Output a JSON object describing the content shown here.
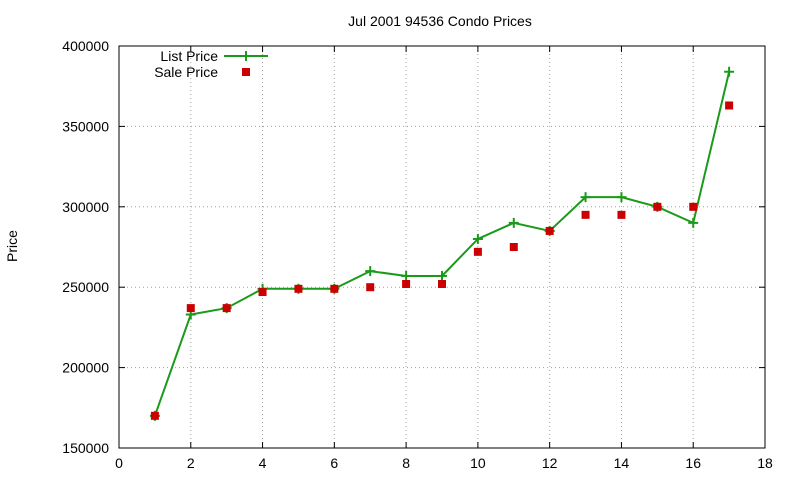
{
  "chart_data": {
    "type": "line",
    "title": "Jul 2001 94536 Condo Prices",
    "xlabel": "",
    "ylabel": "Price",
    "xlim": [
      0,
      18
    ],
    "ylim": [
      150000,
      400000
    ],
    "x_ticks": [
      "0",
      "2",
      "4",
      "6",
      "8",
      "10",
      "12",
      "14",
      "16",
      "18"
    ],
    "y_ticks": [
      "150000",
      "200000",
      "250000",
      "300000",
      "350000",
      "400000"
    ],
    "grid": true,
    "legend_position": "top-left",
    "series": [
      {
        "name": "List Price",
        "style": "line-plus",
        "color": "#1a9a1a",
        "x": [
          1,
          2,
          3,
          4,
          5,
          6,
          7,
          8,
          9,
          10,
          11,
          12,
          13,
          14,
          15,
          16,
          17
        ],
        "values": [
          170000,
          233000,
          237000,
          249000,
          249000,
          249000,
          260000,
          257000,
          257000,
          280000,
          290000,
          285000,
          306000,
          306000,
          300000,
          290000,
          384000
        ]
      },
      {
        "name": "Sale Price",
        "style": "square-markers",
        "color": "#cc0000",
        "x": [
          1,
          2,
          3,
          4,
          5,
          6,
          7,
          8,
          9,
          10,
          11,
          12,
          13,
          14,
          15,
          16,
          17
        ],
        "values": [
          170000,
          237000,
          237000,
          247000,
          249000,
          249000,
          250000,
          252000,
          252000,
          272000,
          275000,
          285000,
          295000,
          295000,
          300000,
          300000,
          363000
        ]
      }
    ]
  }
}
